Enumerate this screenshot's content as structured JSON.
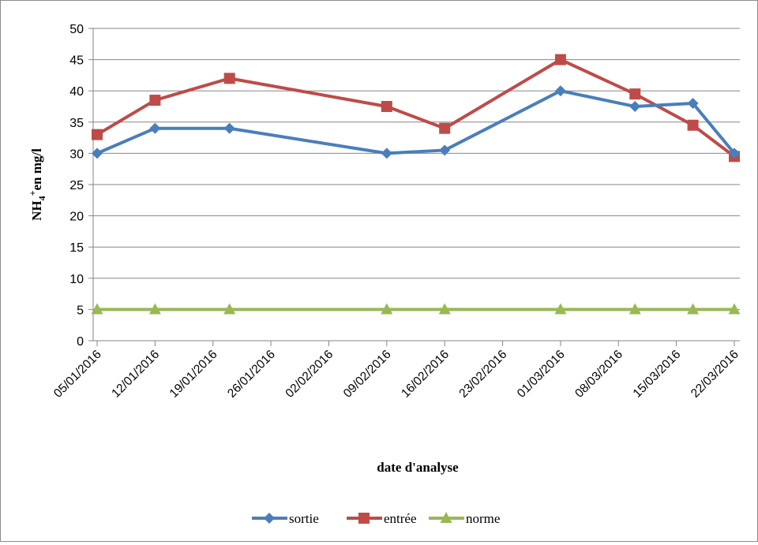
{
  "chart_data": {
    "type": "line",
    "title": "",
    "xlabel": "date d'analyse",
    "ylabel": "NH4 +en mg/l",
    "ylabel_parts": {
      "main": "NH",
      "sub": "4",
      "sup": "+",
      "rest": "en mg/l"
    },
    "ylim": [
      0,
      50
    ],
    "yticks": [
      0,
      5,
      10,
      15,
      20,
      25,
      30,
      35,
      40,
      45,
      50
    ],
    "xlim": [
      "05/01/2016",
      "22/03/2016"
    ],
    "xticks": [
      "05/01/2016",
      "12/01/2016",
      "19/01/2016",
      "26/01/2016",
      "02/02/2016",
      "09/02/2016",
      "16/02/2016",
      "23/02/2016",
      "01/03/2016",
      "08/03/2016",
      "15/03/2016",
      "22/03/2016"
    ],
    "x": [
      "05/01/2016",
      "12/01/2016",
      "21/01/2016",
      "09/02/2016",
      "16/02/2016",
      "01/03/2016",
      "10/03/2016",
      "17/03/2016",
      "22/03/2016"
    ],
    "series": [
      {
        "name": "sortie",
        "color": "#4a7ebb",
        "marker": "diamond",
        "values": [
          30,
          34,
          34,
          30,
          30.5,
          40,
          37.5,
          38,
          30
        ]
      },
      {
        "name": "entrée",
        "color": "#be4b48",
        "marker": "square",
        "values": [
          33,
          38.5,
          42,
          37.5,
          34,
          45,
          39.5,
          34.5,
          29.5
        ]
      },
      {
        "name": "norme",
        "color": "#98b954",
        "marker": "triangle",
        "values": [
          5,
          5,
          5,
          5,
          5,
          5,
          5,
          5,
          5
        ]
      }
    ],
    "grid": "horizontal",
    "legend": "bottom"
  }
}
